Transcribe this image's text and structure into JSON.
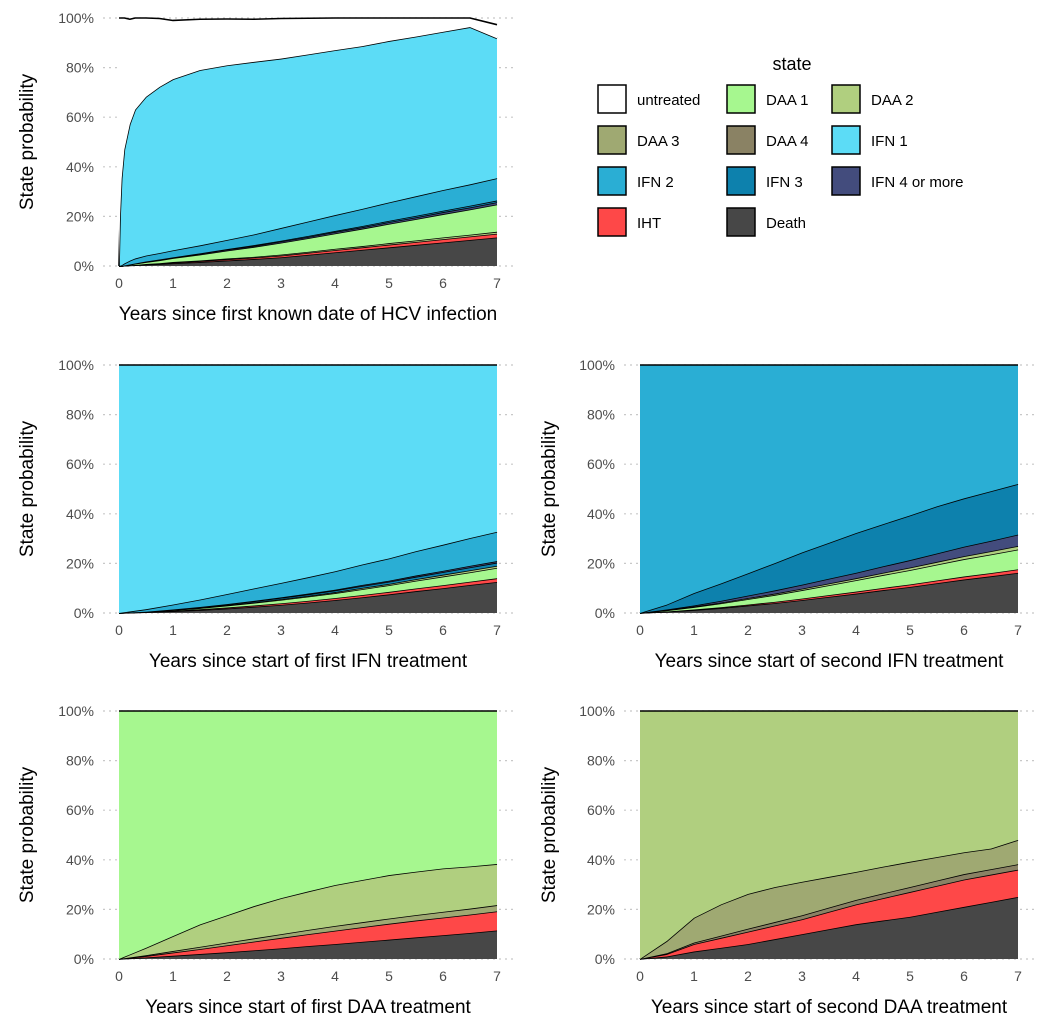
{
  "legend": {
    "title": "state",
    "items": [
      {
        "label": "untreated",
        "color": "#ffffff"
      },
      {
        "label": "DAA 1",
        "color": "#a6f78f"
      },
      {
        "label": "DAA 2",
        "color": "#b0cf7f"
      },
      {
        "label": "DAA 3",
        "color": "#9fa972"
      },
      {
        "label": "DAA 4",
        "color": "#8a8264"
      },
      {
        "label": "IFN 1",
        "color": "#5cdcf6"
      },
      {
        "label": "IFN 2",
        "color": "#2aaed4"
      },
      {
        "label": "IFN 3",
        "color": "#0d81ad"
      },
      {
        "label": "IFN 4 or more",
        "color": "#434c7d"
      },
      {
        "label": "IHT",
        "color": "#fe4848"
      },
      {
        "label": "Death",
        "color": "#474747"
      }
    ]
  },
  "chart_data": [
    {
      "type": "area",
      "stacked": true,
      "xlabel": "Years since first known date of HCV infection",
      "ylabel": "State probability",
      "x_ticks": [
        0,
        1,
        2,
        3,
        4,
        5,
        6,
        7
      ],
      "y_ticks": [
        "0%",
        "20%",
        "40%",
        "60%",
        "80%",
        "100%"
      ],
      "xlim": [
        0,
        7
      ],
      "ylim": [
        0,
        1
      ],
      "x": [
        0,
        0.02,
        0.05,
        0.1,
        0.2,
        0.3,
        0.5,
        0.75,
        1,
        1.5,
        2,
        2.5,
        3,
        3.5,
        4,
        4.5,
        5,
        5.5,
        6,
        6.5,
        7
      ],
      "series": [
        {
          "name": "Death",
          "values": [
            0,
            0,
            0,
            0.001,
            0.002,
            0.003,
            0.005,
            0.008,
            0.011,
            0.016,
            0.022,
            0.028,
            0.035,
            0.045,
            0.055,
            0.065,
            0.075,
            0.085,
            0.095,
            0.105,
            0.115
          ]
        },
        {
          "name": "IHT",
          "values": [
            0,
            0,
            0,
            0,
            0.001,
            0.001,
            0.002,
            0.002,
            0.003,
            0.004,
            0.005,
            0.006,
            0.007,
            0.008,
            0.009,
            0.01,
            0.011,
            0.012,
            0.013,
            0.014,
            0.015
          ]
        },
        {
          "name": "DAA 2",
          "values": [
            0,
            0,
            0,
            0,
            0,
            0,
            0.001,
            0.001,
            0.002,
            0.002,
            0.003,
            0.003,
            0.004,
            0.004,
            0.005,
            0.005,
            0.006,
            0.006,
            0.007,
            0.007,
            0.008
          ]
        },
        {
          "name": "DAA 1",
          "values": [
            0,
            0,
            0,
            0.001,
            0.003,
            0.005,
            0.008,
            0.012,
            0.016,
            0.024,
            0.032,
            0.04,
            0.048,
            0.055,
            0.062,
            0.07,
            0.078,
            0.086,
            0.094,
            0.102,
            0.11
          ]
        },
        {
          "name": "IFN 4 or more",
          "values": [
            0,
            0,
            0,
            0,
            0,
            0.001,
            0.001,
            0.002,
            0.002,
            0.003,
            0.004,
            0.004,
            0.005,
            0.005,
            0.006,
            0.006,
            0.007,
            0.007,
            0.008,
            0.008,
            0.009
          ]
        },
        {
          "name": "IFN 3",
          "values": [
            0,
            0,
            0,
            0,
            0,
            0,
            0.001,
            0.001,
            0.001,
            0.002,
            0.002,
            0.003,
            0.003,
            0.004,
            0.004,
            0.005,
            0.005,
            0.006,
            0.006,
            0.007,
            0.007
          ]
        },
        {
          "name": "IFN 2",
          "values": [
            0,
            0.001,
            0.003,
            0.008,
            0.015,
            0.02,
            0.024,
            0.026,
            0.028,
            0.032,
            0.037,
            0.043,
            0.051,
            0.058,
            0.064,
            0.069,
            0.074,
            0.079,
            0.083,
            0.086,
            0.09
          ]
        },
        {
          "name": "IFN 1",
          "values": [
            0,
            0.2,
            0.35,
            0.46,
            0.55,
            0.6,
            0.64,
            0.67,
            0.69,
            0.707,
            0.704,
            0.696,
            0.683,
            0.674,
            0.665,
            0.656,
            0.651,
            0.644,
            0.638,
            0.634,
            0.564
          ]
        },
        {
          "name": "untreated",
          "values": [
            1,
            0.799,
            0.647,
            0.53,
            0.424,
            0.37,
            0.318,
            0.276,
            0.237,
            0.205,
            0.187,
            0.172,
            0.162,
            0.146,
            0.13,
            0.114,
            0.093,
            0.075,
            0.056,
            0.037,
            0.055
          ]
        }
      ]
    },
    {
      "type": "area",
      "stacked": true,
      "xlabel": "Years since start of first IFN treatment",
      "ylabel": "State probability",
      "x_ticks": [
        0,
        1,
        2,
        3,
        4,
        5,
        6,
        7
      ],
      "y_ticks": [
        "0%",
        "20%",
        "40%",
        "60%",
        "80%",
        "100%"
      ],
      "xlim": [
        0,
        7
      ],
      "ylim": [
        0,
        1
      ],
      "x": [
        0,
        0.5,
        1,
        1.5,
        2,
        2.5,
        3,
        3.5,
        4,
        4.5,
        5,
        5.5,
        6,
        6.5,
        7
      ],
      "series": [
        {
          "name": "Death",
          "values": [
            0,
            0.003,
            0.007,
            0.012,
            0.018,
            0.025,
            0.033,
            0.042,
            0.052,
            0.063,
            0.075,
            0.088,
            0.1,
            0.113,
            0.125
          ]
        },
        {
          "name": "IHT",
          "values": [
            0,
            0.001,
            0.002,
            0.003,
            0.004,
            0.005,
            0.006,
            0.007,
            0.008,
            0.009,
            0.01,
            0.011,
            0.012,
            0.013,
            0.015
          ]
        },
        {
          "name": "DAA 1",
          "values": [
            0,
            0.001,
            0.003,
            0.005,
            0.008,
            0.011,
            0.014,
            0.017,
            0.02,
            0.024,
            0.027,
            0.031,
            0.035,
            0.038,
            0.042
          ]
        },
        {
          "name": "DAA 2",
          "values": [
            0,
            0,
            0.001,
            0.001,
            0.002,
            0.002,
            0.003,
            0.003,
            0.004,
            0.005,
            0.005,
            0.006,
            0.007,
            0.008,
            0.008
          ]
        },
        {
          "name": "IFN 3",
          "values": [
            0,
            0,
            0.001,
            0.002,
            0.003,
            0.004,
            0.005,
            0.006,
            0.007,
            0.008,
            0.009,
            0.01,
            0.011,
            0.012,
            0.013
          ]
        },
        {
          "name": "IFN 4 or more",
          "values": [
            0,
            0,
            0,
            0.001,
            0.001,
            0.002,
            0.002,
            0.003,
            0.003,
            0.004,
            0.004,
            0.005,
            0.005,
            0.006,
            0.006
          ]
        },
        {
          "name": "IFN 2",
          "values": [
            0,
            0.01,
            0.02,
            0.03,
            0.04,
            0.05,
            0.058,
            0.066,
            0.074,
            0.082,
            0.09,
            0.098,
            0.105,
            0.112,
            0.118
          ]
        },
        {
          "name": "IFN 1",
          "values": [
            1,
            0.985,
            0.966,
            0.946,
            0.924,
            0.901,
            0.879,
            0.856,
            0.832,
            0.805,
            0.78,
            0.751,
            0.725,
            0.698,
            0.673
          ]
        }
      ]
    },
    {
      "type": "area",
      "stacked": true,
      "xlabel": "Years since start of second IFN treatment",
      "ylabel": "State probability",
      "x_ticks": [
        0,
        1,
        2,
        3,
        4,
        5,
        6,
        7
      ],
      "y_ticks": [
        "0%",
        "20%",
        "40%",
        "60%",
        "80%",
        "100%"
      ],
      "xlim": [
        0,
        7
      ],
      "ylim": [
        0,
        1
      ],
      "x": [
        0,
        0.5,
        1,
        1.5,
        2,
        2.5,
        3,
        3.5,
        4,
        4.5,
        5,
        5.5,
        6,
        6.5,
        7
      ],
      "series": [
        {
          "name": "Death",
          "values": [
            0,
            0.005,
            0.012,
            0.02,
            0.03,
            0.04,
            0.052,
            0.065,
            0.078,
            0.092,
            0.105,
            0.12,
            0.135,
            0.148,
            0.162
          ]
        },
        {
          "name": "IHT",
          "values": [
            0,
            0.001,
            0.002,
            0.003,
            0.004,
            0.005,
            0.006,
            0.007,
            0.008,
            0.009,
            0.01,
            0.011,
            0.012,
            0.013,
            0.014
          ]
        },
        {
          "name": "DAA 1",
          "values": [
            0,
            0.005,
            0.01,
            0.016,
            0.022,
            0.028,
            0.034,
            0.04,
            0.046,
            0.052,
            0.058,
            0.064,
            0.07,
            0.075,
            0.08
          ]
        },
        {
          "name": "DAA 2",
          "values": [
            0,
            0.001,
            0.002,
            0.003,
            0.004,
            0.005,
            0.006,
            0.007,
            0.008,
            0.009,
            0.01,
            0.011,
            0.012,
            0.013,
            0.014
          ]
        },
        {
          "name": "IFN 4 or more",
          "values": [
            0,
            0.002,
            0.004,
            0.007,
            0.01,
            0.013,
            0.016,
            0.019,
            0.022,
            0.026,
            0.03,
            0.034,
            0.038,
            0.042,
            0.046
          ]
        },
        {
          "name": "IFN 3",
          "values": [
            0,
            0.02,
            0.05,
            0.07,
            0.09,
            0.11,
            0.13,
            0.145,
            0.16,
            0.17,
            0.18,
            0.19,
            0.195,
            0.2,
            0.204
          ]
        },
        {
          "name": "IFN 2",
          "values": [
            1,
            0.966,
            0.92,
            0.881,
            0.84,
            0.799,
            0.756,
            0.717,
            0.678,
            0.642,
            0.607,
            0.57,
            0.538,
            0.509,
            0.48
          ]
        }
      ]
    },
    {
      "type": "area",
      "stacked": true,
      "xlabel": "Years since start of first DAA treatment",
      "ylabel": "State probability",
      "x_ticks": [
        0,
        1,
        2,
        3,
        4,
        5,
        6,
        7
      ],
      "y_ticks": [
        "0%",
        "20%",
        "40%",
        "60%",
        "80%",
        "100%"
      ],
      "xlim": [
        0,
        7
      ],
      "ylim": [
        0,
        1
      ],
      "x": [
        0,
        0.5,
        1,
        1.5,
        2,
        2.5,
        3,
        3.5,
        4,
        4.5,
        5,
        5.5,
        6,
        6.5,
        7
      ],
      "series": [
        {
          "name": "Death",
          "values": [
            0,
            0.006,
            0.013,
            0.02,
            0.027,
            0.035,
            0.043,
            0.052,
            0.06,
            0.069,
            0.078,
            0.087,
            0.096,
            0.105,
            0.115
          ]
        },
        {
          "name": "IHT",
          "values": [
            0,
            0.006,
            0.013,
            0.02,
            0.028,
            0.035,
            0.042,
            0.048,
            0.054,
            0.059,
            0.064,
            0.068,
            0.071,
            0.074,
            0.077
          ]
        },
        {
          "name": "DAA 3",
          "values": [
            0,
            0.003,
            0.006,
            0.009,
            0.011,
            0.013,
            0.015,
            0.017,
            0.019,
            0.02,
            0.021,
            0.022,
            0.023,
            0.024,
            0.025
          ]
        },
        {
          "name": "DAA 2",
          "values": [
            0,
            0.03,
            0.06,
            0.09,
            0.11,
            0.13,
            0.145,
            0.155,
            0.165,
            0.17,
            0.175,
            0.175,
            0.175,
            0.17,
            0.166
          ]
        },
        {
          "name": "DAA 1",
          "values": [
            1,
            0.955,
            0.908,
            0.861,
            0.824,
            0.787,
            0.755,
            0.728,
            0.702,
            0.682,
            0.662,
            0.648,
            0.635,
            0.627,
            0.617
          ]
        }
      ]
    },
    {
      "type": "area",
      "stacked": true,
      "xlabel": "Years since start of second DAA treatment",
      "ylabel": "State probability",
      "x_ticks": [
        0,
        1,
        2,
        3,
        4,
        5,
        6,
        7
      ],
      "y_ticks": [
        "0%",
        "20%",
        "40%",
        "60%",
        "80%",
        "100%"
      ],
      "xlim": [
        0,
        7
      ],
      "ylim": [
        0,
        1
      ],
      "x": [
        0,
        0.5,
        1,
        1.5,
        2,
        2.5,
        3,
        3.5,
        4,
        4.5,
        5,
        5.5,
        6,
        6.5,
        7
      ],
      "series": [
        {
          "name": "Death",
          "values": [
            0,
            0.01,
            0.03,
            0.045,
            0.06,
            0.08,
            0.1,
            0.12,
            0.14,
            0.155,
            0.17,
            0.19,
            0.21,
            0.23,
            0.25
          ]
        },
        {
          "name": "IHT",
          "values": [
            0,
            0.01,
            0.03,
            0.04,
            0.05,
            0.055,
            0.06,
            0.07,
            0.08,
            0.09,
            0.1,
            0.105,
            0.11,
            0.11,
            0.11
          ]
        },
        {
          "name": "DAA 4",
          "values": [
            0,
            0.003,
            0.006,
            0.009,
            0.012,
            0.014,
            0.016,
            0.017,
            0.018,
            0.019,
            0.02,
            0.021,
            0.022,
            0.022,
            0.022
          ]
        },
        {
          "name": "DAA 3",
          "values": [
            0,
            0.05,
            0.1,
            0.126,
            0.14,
            0.141,
            0.135,
            0.124,
            0.113,
            0.108,
            0.102,
            0.095,
            0.088,
            0.083,
            0.098
          ]
        },
        {
          "name": "DAA 2",
          "values": [
            1,
            0.927,
            0.834,
            0.78,
            0.738,
            0.71,
            0.689,
            0.669,
            0.649,
            0.628,
            0.608,
            0.589,
            0.57,
            0.555,
            0.52
          ]
        }
      ]
    }
  ]
}
